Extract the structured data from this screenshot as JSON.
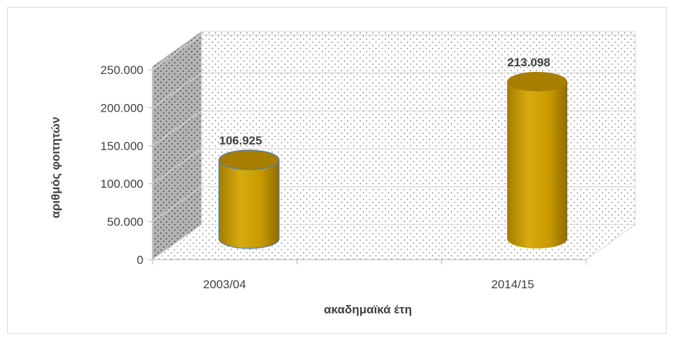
{
  "chart_data": {
    "type": "bar",
    "style": "3d-cylinder",
    "categories": [
      "2003/04",
      "2014/15"
    ],
    "series": [
      {
        "values": [
          106925,
          213098
        ],
        "data_labels": [
          "106.925",
          "213.098"
        ],
        "color": "#c79a00"
      }
    ],
    "title": "",
    "xlabel": "ακαδημαϊκά έτη",
    "ylabel": "αριθμός φοιτητών",
    "ylim": [
      0,
      250000
    ],
    "yticks": [
      0,
      50000,
      100000,
      150000,
      200000,
      250000
    ],
    "ytick_labels": [
      "0",
      "50.000",
      "100.000",
      "150.000",
      "200.000",
      "250.000"
    ],
    "grid": true,
    "legend": "none",
    "colors": {
      "bar_body": "#c79a00",
      "bar_top": "#a87e00",
      "bar_edge": "#4a7ebb",
      "floor_pattern": "#7f7f7f",
      "wall_side": "#a6a6a6"
    }
  }
}
